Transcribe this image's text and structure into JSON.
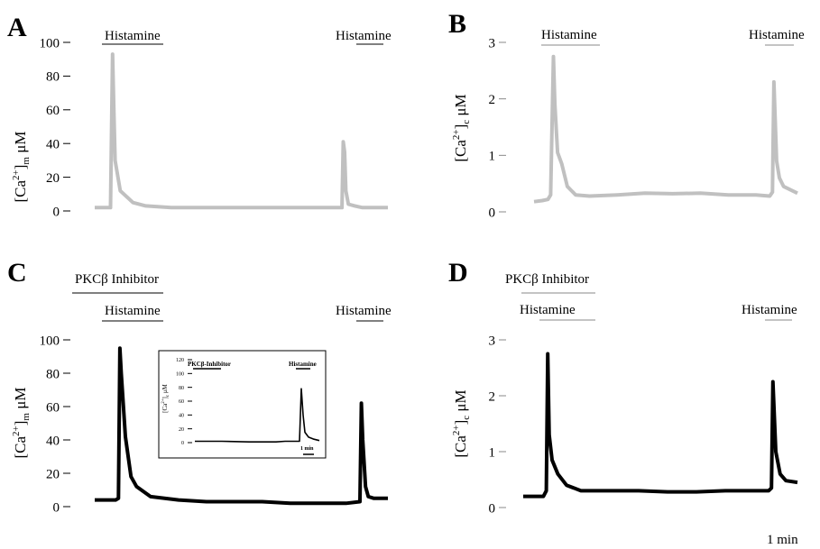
{
  "chart_data": [
    {
      "panel": "A",
      "type": "line",
      "treatments": [
        "Histamine",
        "Histamine"
      ],
      "ylabel_main": "[Ca",
      "ylabel_sup": "2+",
      "ylabel_sub": "m",
      "ylabel_unit": "μM",
      "yticks": [
        "0",
        "20",
        "40",
        "60",
        "80",
        "100"
      ],
      "ylim": [
        0,
        100
      ],
      "color": "#c0c0c0",
      "series": [
        {
          "x": [
            0,
            0.5,
            0.62,
            0.7,
            0.75,
            0.8,
            1.0,
            1.5,
            2.0,
            3.0,
            4.0,
            6.0,
            8.0,
            9.7,
            9.75,
            9.8,
            9.85,
            9.95,
            10.2,
            10.5,
            11.0,
            11.5
          ],
          "y": [
            2,
            2,
            2,
            93,
            60,
            30,
            12,
            5,
            3,
            2,
            2,
            2,
            2,
            2,
            41,
            35,
            12,
            4,
            3,
            2,
            2,
            2
          ]
        }
      ]
    },
    {
      "panel": "B",
      "type": "line",
      "treatments": [
        "Histamine",
        "Histamine"
      ],
      "ylabel_main": "[Ca",
      "ylabel_sup": "2+",
      "ylabel_sub": "c",
      "ylabel_unit": "μM",
      "yticks": [
        "0",
        "1",
        "2",
        "3"
      ],
      "ylim": [
        0,
        3
      ],
      "color": "#c0c0c0",
      "series": [
        {
          "x": [
            0,
            0.3,
            0.5,
            0.6,
            0.7,
            0.75,
            0.85,
            1.0,
            1.2,
            1.5,
            2.0,
            3.0,
            4.0,
            5.0,
            6.0,
            7.0,
            8.0,
            8.5,
            8.6,
            8.65,
            8.75,
            8.85,
            9.0,
            9.5
          ],
          "y": [
            0.18,
            0.2,
            0.22,
            0.3,
            2.75,
            1.9,
            1.05,
            0.85,
            0.45,
            0.3,
            0.28,
            0.3,
            0.33,
            0.32,
            0.33,
            0.3,
            0.3,
            0.28,
            0.35,
            2.3,
            0.9,
            0.6,
            0.45,
            0.33
          ]
        }
      ]
    },
    {
      "panel": "C",
      "type": "line",
      "treatments": [
        "PKCβ Inhibitor",
        "Histamine",
        "Histamine"
      ],
      "ylabel_main": "[Ca",
      "ylabel_sup": "2+",
      "ylabel_sub": "m",
      "ylabel_unit": "μM",
      "yticks": [
        "0",
        "20",
        "40",
        "60",
        "80",
        "100"
      ],
      "ylim": [
        0,
        100
      ],
      "color": "#000000",
      "series": [
        {
          "x": [
            0,
            0.5,
            0.75,
            0.85,
            0.9,
            0.95,
            1.1,
            1.3,
            1.5,
            2.0,
            3.0,
            4.0,
            5.0,
            6.0,
            7.0,
            8.0,
            9.0,
            9.5,
            9.55,
            9.6,
            9.7,
            9.8,
            10.0,
            10.5
          ],
          "y": [
            4,
            4,
            4,
            5,
            95,
            80,
            42,
            18,
            12,
            6,
            4,
            3,
            3,
            3,
            2,
            2,
            2,
            3,
            62,
            40,
            12,
            6,
            5,
            5
          ]
        }
      ],
      "inset": {
        "treatments": [
          "PKCβ-Inhibitor",
          "Histamine"
        ],
        "ylabel": "[Ca",
        "ylabel_sup": "2+",
        "ylabel_sub": "c",
        "ylabel_unit": "μM",
        "yticks": [
          "0",
          "20",
          "40",
          "60",
          "80",
          "100",
          "120"
        ],
        "ylim": [
          0,
          120
        ],
        "scale": "1 min",
        "series": [
          {
            "x": [
              0,
              3,
              6,
              9,
              10,
              11,
              11.6,
              11.8,
              12.0,
              12.2,
              12.6,
              13.2,
              13.8
            ],
            "y": [
              2,
              2,
              1,
              1,
              2,
              2,
              2,
              78,
              40,
              15,
              8,
              5,
              3
            ]
          }
        ]
      }
    },
    {
      "panel": "D",
      "type": "line",
      "treatments": [
        "PKCβ Inhibitor",
        "Histamine",
        "Histamine"
      ],
      "ylabel_main": "[Ca",
      "ylabel_sup": "2+",
      "ylabel_sub": "c",
      "ylabel_unit": "μM",
      "yticks": [
        "0",
        "1",
        "2",
        "3"
      ],
      "ylim": [
        0,
        3
      ],
      "color": "#000000",
      "series": [
        {
          "x": [
            0,
            0.5,
            0.7,
            0.8,
            0.85,
            0.9,
            1.0,
            1.2,
            1.5,
            2.0,
            3.0,
            4.0,
            5.0,
            6.0,
            7.0,
            8.0,
            8.5,
            8.6,
            8.65,
            8.75,
            8.9,
            9.1,
            9.5
          ],
          "y": [
            0.2,
            0.2,
            0.2,
            0.3,
            2.75,
            1.3,
            0.85,
            0.6,
            0.4,
            0.3,
            0.3,
            0.3,
            0.28,
            0.28,
            0.3,
            0.3,
            0.3,
            0.35,
            2.25,
            1.0,
            0.6,
            0.48,
            0.45
          ]
        }
      ],
      "scale": "1 min"
    }
  ]
}
